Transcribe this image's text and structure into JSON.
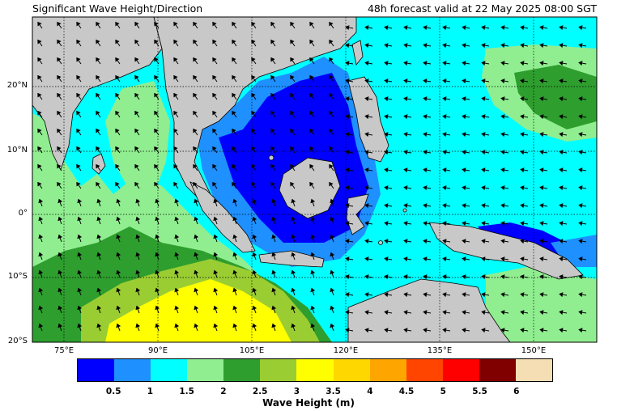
{
  "title_left": "Significant Wave Height/Direction",
  "title_right": "48h forecast valid at 22 May 2025 08:00 SGT",
  "lat_labels": [
    "20°N",
    "10°N",
    "0°",
    "10°S",
    "20°S"
  ],
  "lon_labels": [
    "75°E",
    "90°E",
    "105°E",
    "120°E",
    "135°E",
    "150°E"
  ],
  "colorbar": {
    "label": "Wave Height (m)",
    "ticks": [
      "0.5",
      "1",
      "1.5",
      "2",
      "2.5",
      "3",
      "3.5",
      "4",
      "4.5",
      "5",
      "5.5",
      "6"
    ],
    "colors": [
      "#0000ff",
      "#1e90ff",
      "#00ffff",
      "#90ee90",
      "#2e9e2e",
      "#9acd32",
      "#ffff00",
      "#ffd700",
      "#ffa500",
      "#ff4500",
      "#ff0000",
      "#800000",
      "#f5deb3"
    ]
  },
  "map_colors": {
    "land": "#c8c8c8",
    "ocean_base": "#00ffff"
  }
}
